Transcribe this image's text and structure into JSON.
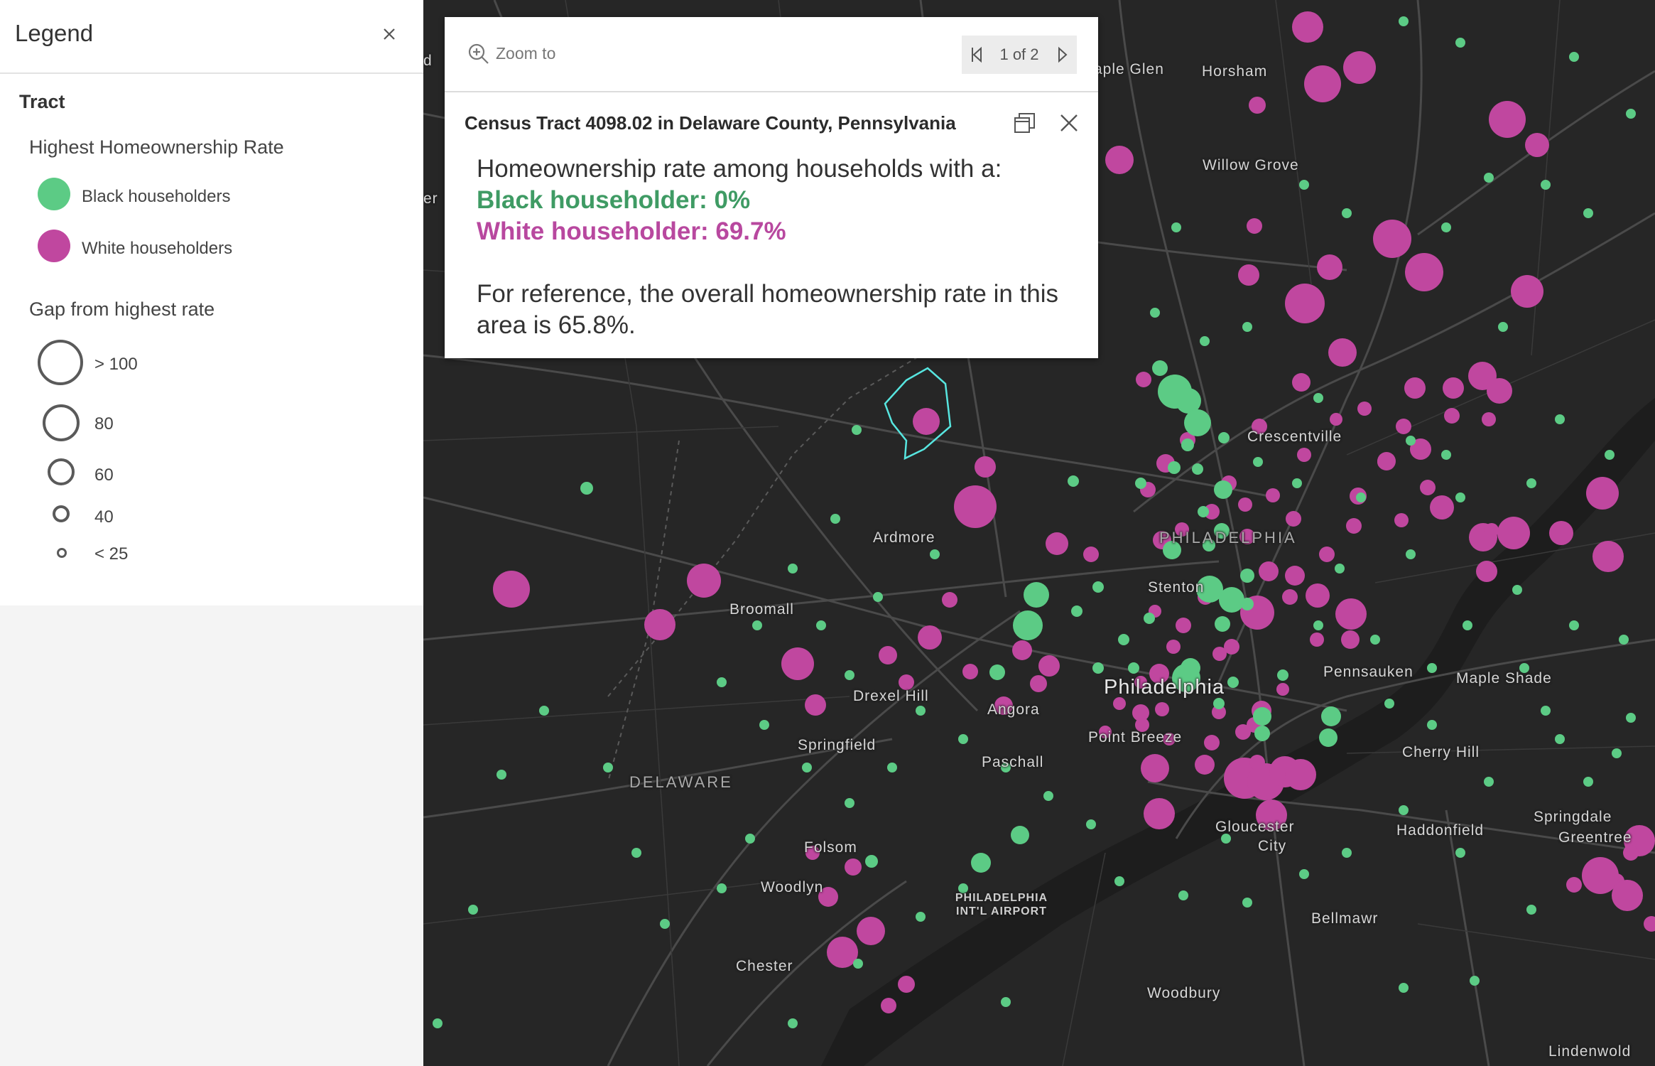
{
  "legend": {
    "title": "Legend",
    "layer": "Tract",
    "color_heading": "Highest Homeownership Rate",
    "color_items": [
      {
        "label": "Black householders",
        "color": "#5ccb85"
      },
      {
        "label": "White householders",
        "color": "#c0479f"
      }
    ],
    "size_heading": "Gap from highest rate",
    "size_items": [
      {
        "label": "> 100"
      },
      {
        "label": "80"
      },
      {
        "label": "60"
      },
      {
        "label": "40"
      },
      {
        "label": "< 25"
      }
    ]
  },
  "popup": {
    "zoom_label": "Zoom to",
    "pager": "1 of 2",
    "title": "Census Tract 4098.02 in Delaware County, Pennsylvania",
    "intro": "Homeownership rate among households with a:",
    "black_line": "Black householder: 0%",
    "white_line": "White householder: 69.7%",
    "reference": "For reference, the overall homeownership rate in this area is 65.8%."
  },
  "map": {
    "colors": {
      "background": "#262626",
      "black_dot": "#5ccb85",
      "white_dot": "#c0479f",
      "highlight": "#57e6e0"
    },
    "places": [
      "aple Glen",
      "Horsham",
      "Willow Grove",
      "Crescentville",
      "PHILADELPHIA",
      "Ardmore",
      "Stenton",
      "Broomall",
      "Drexel Hill",
      "Angora",
      "Philadelphia",
      "Pennsauken",
      "Maple Shade",
      "Springfield",
      "Point Breeze",
      "Cherry Hill",
      "Paschall",
      "DELAWARE",
      "Gloucester",
      "City",
      "Haddonfield",
      "Springdale",
      "Greentree",
      "Folsom",
      "Woodlyn",
      "PHILADELPHIA",
      "INT'L AIRPORT",
      "Bellmawr",
      "Chester",
      "Woodbury",
      "Lindenwold",
      "d",
      "er"
    ]
  }
}
